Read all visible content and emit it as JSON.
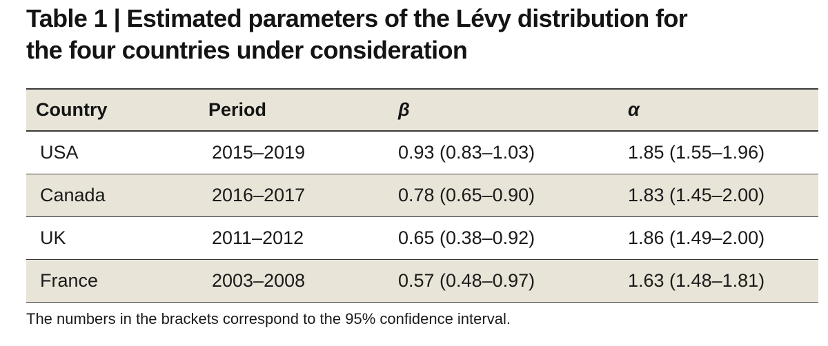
{
  "title": {
    "line1": "Table 1 | Estimated parameters of the Lévy distribution for",
    "line2": "the four countries under consideration"
  },
  "table": {
    "headers": [
      "Country",
      "Period",
      "β",
      "α"
    ],
    "rows": [
      {
        "country": "USA",
        "period": "2015–2019",
        "beta": "0.93 (0.83–1.03)",
        "alpha": "1.85 (1.55–1.96)"
      },
      {
        "country": "Canada",
        "period": "2016–2017",
        "beta": "0.78 (0.65–0.90)",
        "alpha": "1.83 (1.45–2.00)"
      },
      {
        "country": "UK",
        "period": "2011–2012",
        "beta": "0.65 (0.38–0.92)",
        "alpha": "1.86 (1.49–2.00)"
      },
      {
        "country": "France",
        "period": "2003–2008",
        "beta": "0.57 (0.48–0.97)",
        "alpha": "1.63 (1.48–1.81)"
      }
    ]
  },
  "footnote": "The numbers in the brackets correspond to the 95% confidence interval.",
  "colors": {
    "shade": "#e8e4d8",
    "rule": "#3a3a3a"
  }
}
